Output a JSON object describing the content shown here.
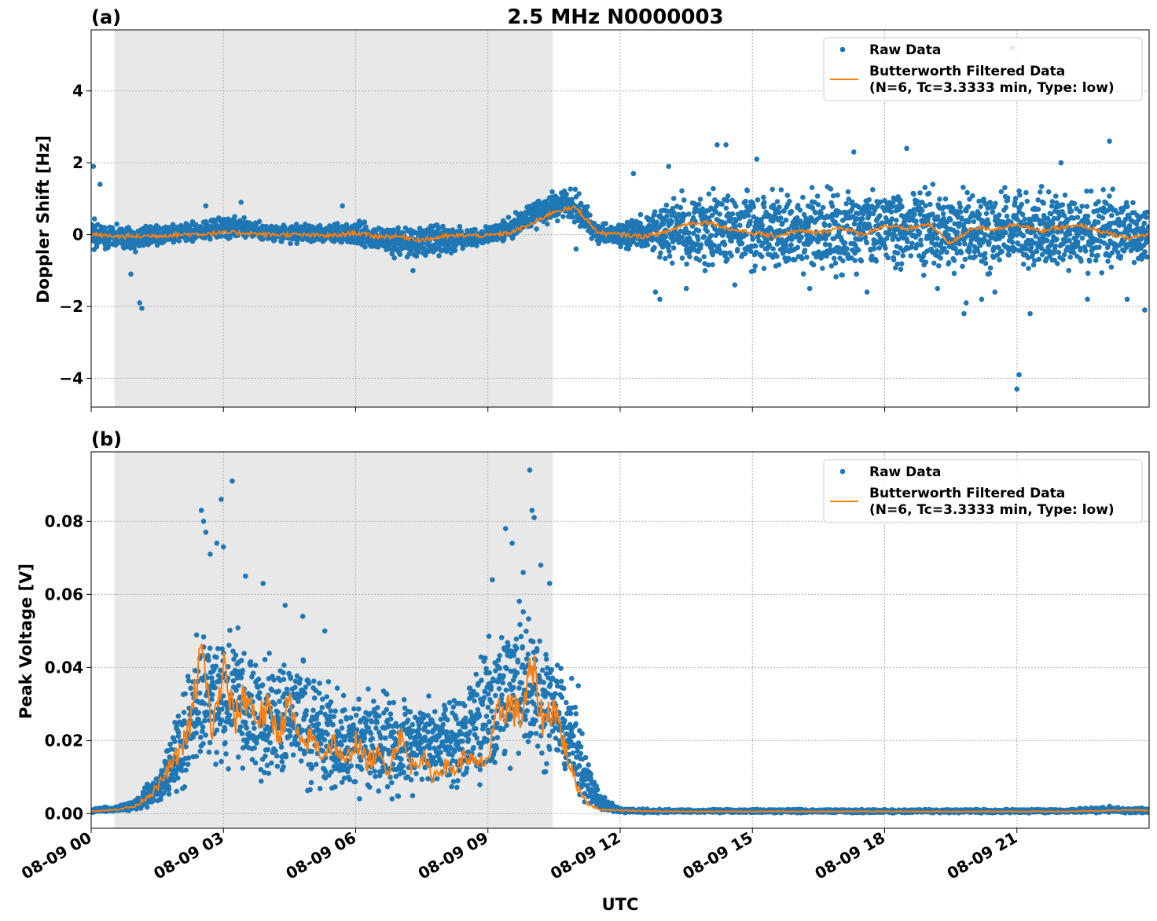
{
  "figure_title": "2.5 MHz N0000003",
  "colors": {
    "raw": "#1f77b4",
    "filtered": "#ff7f0e",
    "shade": "#e8e8e8",
    "grid": "#b0b0b0"
  },
  "x_ticks": [
    "08-09 00",
    "08-09 03",
    "08-09 06",
    "08-09 09",
    "08-09 12",
    "08-09 15",
    "08-09 18",
    "08-09 21"
  ],
  "xlabel": "UTC",
  "chart_data": [
    {
      "type": "scatter",
      "panel_label": "(a)",
      "ylabel": "Doppler Shift [Hz]",
      "xlim_hours": [
        0,
        24
      ],
      "ylim": [
        -4.8,
        5.7
      ],
      "y_ticks": [
        -4,
        -2,
        0,
        2,
        4
      ],
      "y_tick_labels": [
        "−4",
        "−2",
        "0",
        "2",
        "4"
      ],
      "grid": true,
      "shaded_span_hours": [
        0.53,
        10.47
      ],
      "legend": {
        "placement": "top-right",
        "raw_label": "Raw Data",
        "filtered_label_line1": "Butterworth Filtered Data",
        "filtered_label_line2": "(N=6, Tc=3.3333 min, Type: low)"
      },
      "series": [
        {
          "name": "Raw Data",
          "kind": "scatter-band",
          "x": [
            0,
            0.5,
            1,
            1.5,
            2,
            2.5,
            3,
            3.5,
            4,
            4.5,
            5,
            5.5,
            6,
            6.5,
            7,
            7.5,
            8,
            8.5,
            9,
            9.5,
            10,
            10.5,
            11,
            11.5,
            12,
            12.5,
            13,
            13.5,
            14,
            14.5,
            15,
            15.5,
            16,
            16.5,
            17,
            17.5,
            18,
            18.5,
            19,
            19.5,
            20,
            20.5,
            21,
            21.5,
            22,
            22.5,
            23,
            23.5,
            24
          ],
          "low": [
            -0.7,
            -0.4,
            -0.5,
            -0.3,
            -0.3,
            -0.2,
            -0.15,
            -0.1,
            -0.2,
            -0.25,
            -0.3,
            -0.3,
            -0.35,
            -0.5,
            -0.7,
            -0.7,
            -0.6,
            -0.4,
            -0.3,
            -0.15,
            0.1,
            0.35,
            0.35,
            -0.3,
            -0.35,
            -0.5,
            -0.8,
            -1.0,
            -1.1,
            -1.1,
            -1.1,
            -1.1,
            -1.1,
            -1.1,
            -1.2,
            -1.1,
            -1.1,
            -1.1,
            -1.2,
            -1.1,
            -1.1,
            -1.1,
            -1.1,
            -1.1,
            -1.1,
            -1.1,
            -1.1,
            -1.1,
            -1.1
          ],
          "high": [
            0.5,
            0.3,
            0.3,
            0.3,
            0.3,
            0.45,
            0.55,
            0.5,
            0.3,
            0.3,
            0.3,
            0.3,
            0.45,
            0.3,
            0.25,
            0.35,
            0.3,
            0.2,
            0.25,
            0.5,
            1.0,
            1.25,
            1.3,
            0.35,
            0.3,
            0.6,
            1.2,
            1.35,
            1.35,
            1.35,
            1.3,
            1.3,
            1.3,
            1.35,
            1.35,
            1.35,
            1.35,
            1.35,
            1.4,
            1.4,
            1.35,
            1.35,
            1.35,
            1.35,
            1.3,
            1.3,
            1.35,
            1.25,
            1.2
          ]
        },
        {
          "name": "Raw Data",
          "kind": "scatter-outliers",
          "x": [
            0.05,
            0.2,
            0.9,
            1.1,
            1.15,
            2.6,
            3.4,
            5.7,
            7.3,
            11.0,
            12.3,
            12.8,
            12.9,
            13.1,
            13.5,
            14.2,
            14.4,
            14.6,
            15.1,
            16.3,
            17.3,
            17.6,
            18.5,
            19.2,
            19.8,
            19.85,
            20.2,
            20.5,
            20.9,
            20.95,
            21.0,
            21.05,
            21.3,
            22.0,
            22.6,
            23.1,
            23.5,
            23.9
          ],
          "y": [
            1.9,
            1.4,
            -1.1,
            -1.9,
            -2.05,
            0.8,
            0.9,
            0.8,
            -1.0,
            -0.4,
            1.7,
            -1.6,
            -1.8,
            1.9,
            -1.5,
            2.5,
            2.5,
            -1.4,
            2.1,
            -1.5,
            2.3,
            -1.6,
            2.4,
            -1.5,
            -2.2,
            -1.9,
            -1.8,
            -1.6,
            5.2,
            4.5,
            -4.3,
            -3.9,
            -2.2,
            2.0,
            -1.8,
            2.6,
            -1.8,
            -2.1
          ]
        },
        {
          "name": "Butterworth Filtered Data",
          "kind": "line",
          "x": [
            0,
            0.5,
            1,
            1.5,
            2,
            2.5,
            3,
            3.5,
            4,
            4.5,
            5,
            5.5,
            6,
            6.5,
            7,
            7.5,
            8,
            8.5,
            9,
            9.5,
            10,
            10.5,
            11,
            11.5,
            12,
            12.5,
            13,
            13.5,
            14,
            14.5,
            15,
            15.5,
            16,
            16.5,
            17,
            17.5,
            18,
            18.5,
            19,
            19.5,
            20,
            20.5,
            21,
            21.5,
            22,
            22.5,
            23,
            23.5,
            24
          ],
          "y": [
            0.0,
            -0.05,
            -0.05,
            -0.03,
            0.0,
            0.02,
            0.05,
            0.05,
            0.0,
            0.0,
            -0.02,
            -0.03,
            0.05,
            -0.05,
            -0.05,
            -0.15,
            -0.05,
            -0.02,
            -0.03,
            0.05,
            0.3,
            0.65,
            0.75,
            0.05,
            0.0,
            -0.05,
            0.05,
            0.3,
            0.35,
            0.15,
            0.05,
            -0.05,
            0.1,
            0.05,
            0.2,
            0.0,
            0.25,
            0.15,
            0.3,
            -0.25,
            0.2,
            0.15,
            0.3,
            0.1,
            0.2,
            0.25,
            0.05,
            -0.1,
            0.0
          ]
        }
      ]
    },
    {
      "type": "scatter",
      "panel_label": "(b)",
      "ylabel": "Peak Voltage [V]",
      "xlim_hours": [
        0,
        24
      ],
      "ylim": [
        -0.004,
        0.099
      ],
      "y_ticks": [
        0.0,
        0.02,
        0.04,
        0.06,
        0.08
      ],
      "y_tick_labels": [
        "0.00",
        "0.02",
        "0.04",
        "0.06",
        "0.08"
      ],
      "grid": true,
      "shaded_span_hours": [
        0.53,
        10.47
      ],
      "legend": {
        "placement": "top-right",
        "raw_label": "Raw Data",
        "filtered_label_line1": "Butterworth Filtered Data",
        "filtered_label_line2": "(N=6, Tc=3.3333 min, Type: low)"
      },
      "series": [
        {
          "name": "Raw Data",
          "kind": "scatter-band",
          "x": [
            0,
            0.5,
            1,
            1.5,
            2,
            2.5,
            3,
            3.5,
            4,
            4.5,
            5,
            5.5,
            6,
            6.5,
            7,
            7.5,
            8,
            8.5,
            9,
            9.5,
            10,
            10.5,
            11,
            11.5,
            12,
            13,
            14,
            15,
            16,
            17,
            18,
            19,
            20,
            21,
            22,
            23,
            24
          ],
          "low": [
            0.0003,
            0.0005,
            0.0008,
            0.002,
            0.006,
            0.01,
            0.011,
            0.009,
            0.007,
            0.006,
            0.005,
            0.004,
            0.004,
            0.004,
            0.004,
            0.005,
            0.005,
            0.006,
            0.008,
            0.012,
            0.013,
            0.01,
            0.003,
            0.0005,
            0.0002,
            0.0002,
            0.0002,
            0.0002,
            0.0002,
            0.0002,
            0.0002,
            0.0002,
            0.0002,
            0.0002,
            0.0002,
            0.0002,
            0.0002
          ],
          "high": [
            0.0015,
            0.002,
            0.004,
            0.012,
            0.03,
            0.055,
            0.058,
            0.05,
            0.045,
            0.045,
            0.042,
            0.035,
            0.035,
            0.034,
            0.033,
            0.033,
            0.034,
            0.035,
            0.048,
            0.06,
            0.058,
            0.045,
            0.03,
            0.006,
            0.0015,
            0.0012,
            0.0012,
            0.0012,
            0.0012,
            0.0012,
            0.0012,
            0.0012,
            0.0012,
            0.0012,
            0.0012,
            0.0018,
            0.0015
          ]
        },
        {
          "name": "Raw Data",
          "kind": "scatter-outliers",
          "x": [
            2.5,
            2.55,
            2.6,
            2.7,
            2.85,
            2.95,
            3.0,
            3.2,
            3.5,
            3.9,
            4.4,
            4.8,
            5.3,
            9.1,
            9.4,
            9.55,
            9.8,
            9.95,
            10.0,
            10.05,
            10.2,
            10.4,
            10.9,
            11.05,
            23.1
          ],
          "y": [
            0.083,
            0.08,
            0.077,
            0.071,
            0.074,
            0.086,
            0.073,
            0.091,
            0.065,
            0.063,
            0.057,
            0.054,
            0.05,
            0.064,
            0.078,
            0.074,
            0.066,
            0.094,
            0.083,
            0.081,
            0.068,
            0.063,
            0.037,
            0.035,
            0.002
          ]
        },
        {
          "name": "Butterworth Filtered Data",
          "kind": "line",
          "x": [
            0,
            0.5,
            1,
            1.5,
            2,
            2.25,
            2.5,
            2.75,
            3,
            3.25,
            3.5,
            3.75,
            4,
            4.25,
            4.5,
            4.75,
            5,
            5.25,
            5.5,
            5.75,
            6,
            6.25,
            6.5,
            6.75,
            7,
            7.25,
            7.5,
            7.75,
            8,
            8.25,
            8.5,
            8.75,
            9,
            9.25,
            9.5,
            9.75,
            10,
            10.25,
            10.5,
            10.75,
            11,
            11.25,
            11.5,
            12,
            13,
            14,
            15,
            16,
            17,
            18,
            19,
            20,
            21,
            22,
            23,
            23.5,
            24
          ],
          "y": [
            0.0007,
            0.001,
            0.002,
            0.007,
            0.017,
            0.024,
            0.045,
            0.022,
            0.04,
            0.025,
            0.033,
            0.026,
            0.028,
            0.022,
            0.03,
            0.018,
            0.021,
            0.016,
            0.02,
            0.013,
            0.02,
            0.014,
            0.016,
            0.012,
            0.022,
            0.013,
            0.016,
            0.01,
            0.013,
            0.012,
            0.016,
            0.013,
            0.015,
            0.028,
            0.03,
            0.026,
            0.04,
            0.025,
            0.03,
            0.018,
            0.008,
            0.003,
            0.0012,
            0.0009,
            0.0006,
            0.0006,
            0.0006,
            0.0006,
            0.0006,
            0.0006,
            0.0006,
            0.0006,
            0.0006,
            0.0006,
            0.0008,
            0.001,
            0.0009
          ]
        }
      ]
    }
  ]
}
